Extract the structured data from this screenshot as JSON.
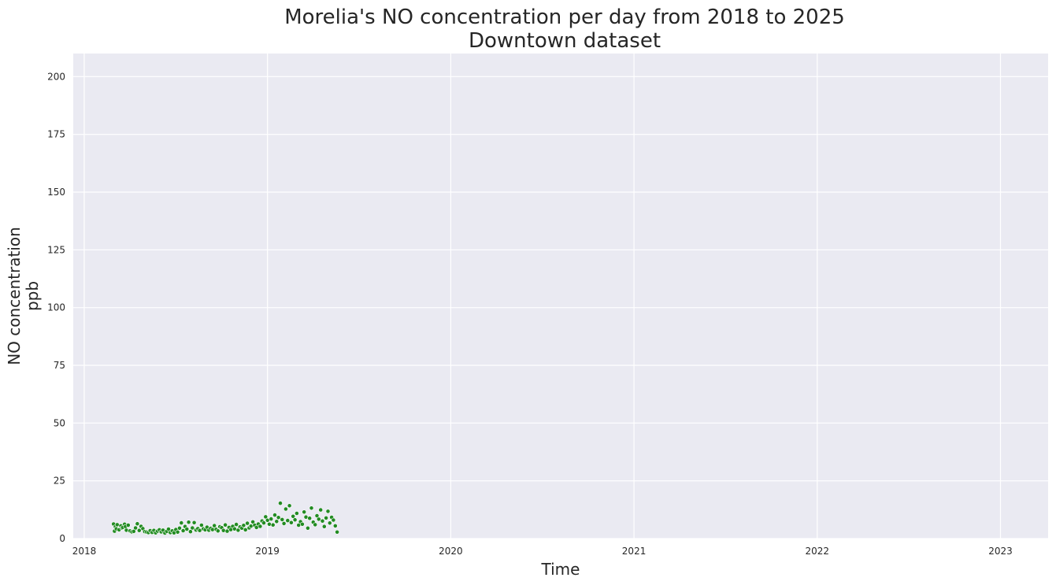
{
  "chart_data": {
    "type": "scatter",
    "title_lines": [
      "Morelia's NO concentration per day from 2018 to 2025",
      "Downtown dataset"
    ],
    "xlabel": "Time",
    "ylabel_lines": [
      "NO concentration",
      "ppb"
    ],
    "xlim": [
      2017.94,
      2023.26
    ],
    "ylim": [
      0,
      210
    ],
    "x_ticks": [
      2018,
      2019,
      2020,
      2021,
      2022,
      2023
    ],
    "x_tick_labels": [
      "2018",
      "2019",
      "2020",
      "2021",
      "2022",
      "2023"
    ],
    "y_ticks": [
      0,
      25,
      50,
      75,
      100,
      125,
      150,
      175,
      200
    ],
    "y_tick_labels": [
      "0",
      "25",
      "50",
      "75",
      "100",
      "125",
      "150",
      "175",
      "200"
    ],
    "grid": true,
    "background": "#EAEAF2",
    "point_color": "#228B22",
    "series": [
      {
        "points": [
          [
            2018.16,
            6.3
          ],
          [
            2018.165,
            3.2
          ],
          [
            2018.17,
            5.1
          ],
          [
            2018.175,
            4.2
          ],
          [
            2018.18,
            6.0
          ],
          [
            2018.19,
            3.8
          ],
          [
            2018.2,
            5.5
          ],
          [
            2018.205,
            4.5
          ],
          [
            2018.21,
            4.8
          ],
          [
            2018.22,
            6.2
          ],
          [
            2018.225,
            5.2
          ],
          [
            2018.23,
            3.6
          ],
          [
            2018.24,
            5.8
          ],
          [
            2018.25,
            3.3
          ],
          [
            2018.26,
            2.9
          ],
          [
            2018.27,
            3.1
          ],
          [
            2018.28,
            4.6
          ],
          [
            2018.29,
            6.4
          ],
          [
            2018.3,
            3.5
          ],
          [
            2018.31,
            5.3
          ],
          [
            2018.32,
            4.3
          ],
          [
            2018.33,
            3.0
          ],
          [
            2018.34,
            2.8
          ],
          [
            2018.35,
            2.6
          ],
          [
            2018.36,
            3.4
          ],
          [
            2018.37,
            2.7
          ],
          [
            2018.38,
            3.5
          ],
          [
            2018.39,
            2.5
          ],
          [
            2018.4,
            3.2
          ],
          [
            2018.41,
            3.8
          ],
          [
            2018.42,
            2.9
          ],
          [
            2018.43,
            3.6
          ],
          [
            2018.44,
            2.4
          ],
          [
            2018.45,
            3.1
          ],
          [
            2018.46,
            4.1
          ],
          [
            2018.47,
            2.6
          ],
          [
            2018.48,
            3.3
          ],
          [
            2018.49,
            2.5
          ],
          [
            2018.5,
            3.9
          ],
          [
            2018.51,
            2.8
          ],
          [
            2018.52,
            4.5
          ],
          [
            2018.53,
            6.8
          ],
          [
            2018.54,
            3.4
          ],
          [
            2018.55,
            5.2
          ],
          [
            2018.56,
            4.1
          ],
          [
            2018.57,
            7.1
          ],
          [
            2018.58,
            3.0
          ],
          [
            2018.59,
            4.6
          ],
          [
            2018.6,
            6.9
          ],
          [
            2018.61,
            3.7
          ],
          [
            2018.62,
            4.3
          ],
          [
            2018.63,
            3.5
          ],
          [
            2018.64,
            5.8
          ],
          [
            2018.65,
            4.2
          ],
          [
            2018.66,
            3.8
          ],
          [
            2018.67,
            4.9
          ],
          [
            2018.68,
            3.6
          ],
          [
            2018.69,
            4.4
          ],
          [
            2018.7,
            3.9
          ],
          [
            2018.71,
            5.6
          ],
          [
            2018.72,
            4.0
          ],
          [
            2018.73,
            3.3
          ],
          [
            2018.74,
            5.1
          ],
          [
            2018.75,
            4.7
          ],
          [
            2018.76,
            3.5
          ],
          [
            2018.77,
            5.9
          ],
          [
            2018.78,
            3.2
          ],
          [
            2018.79,
            4.8
          ],
          [
            2018.8,
            3.9
          ],
          [
            2018.81,
            5.3
          ],
          [
            2018.82,
            4.2
          ],
          [
            2018.83,
            6.1
          ],
          [
            2018.84,
            3.6
          ],
          [
            2018.85,
            5.0
          ],
          [
            2018.86,
            4.5
          ],
          [
            2018.87,
            5.7
          ],
          [
            2018.88,
            3.8
          ],
          [
            2018.89,
            6.6
          ],
          [
            2018.9,
            4.6
          ],
          [
            2018.91,
            5.4
          ],
          [
            2018.92,
            7.2
          ],
          [
            2018.93,
            5.8
          ],
          [
            2018.94,
            4.8
          ],
          [
            2018.95,
            6.3
          ],
          [
            2018.96,
            5.3
          ],
          [
            2018.97,
            7.6
          ],
          [
            2018.98,
            6.8
          ],
          [
            2018.99,
            9.4
          ],
          [
            2019.0,
            7.9
          ],
          [
            2019.01,
            6.2
          ],
          [
            2019.02,
            8.5
          ],
          [
            2019.03,
            5.9
          ],
          [
            2019.04,
            10.2
          ],
          [
            2019.05,
            7.4
          ],
          [
            2019.06,
            9.1
          ],
          [
            2019.07,
            15.3
          ],
          [
            2019.08,
            8.2
          ],
          [
            2019.09,
            6.5
          ],
          [
            2019.1,
            12.8
          ],
          [
            2019.11,
            7.8
          ],
          [
            2019.12,
            14.2
          ],
          [
            2019.13,
            6.9
          ],
          [
            2019.14,
            9.6
          ],
          [
            2019.15,
            8.1
          ],
          [
            2019.16,
            10.9
          ],
          [
            2019.17,
            5.8
          ],
          [
            2019.18,
            7.3
          ],
          [
            2019.19,
            6.2
          ],
          [
            2019.2,
            11.5
          ],
          [
            2019.21,
            9.3
          ],
          [
            2019.22,
            4.5
          ],
          [
            2019.23,
            8.8
          ],
          [
            2019.24,
            13.2
          ],
          [
            2019.25,
            7.1
          ],
          [
            2019.26,
            6.0
          ],
          [
            2019.27,
            9.9
          ],
          [
            2019.28,
            8.4
          ],
          [
            2019.29,
            12.4
          ],
          [
            2019.3,
            7.6
          ],
          [
            2019.31,
            5.2
          ],
          [
            2019.32,
            8.9
          ],
          [
            2019.33,
            11.8
          ],
          [
            2019.34,
            6.7
          ],
          [
            2019.35,
            9.2
          ],
          [
            2019.36,
            8.0
          ],
          [
            2019.37,
            5.5
          ],
          [
            2019.38,
            2.8
          ]
        ]
      }
    ]
  }
}
